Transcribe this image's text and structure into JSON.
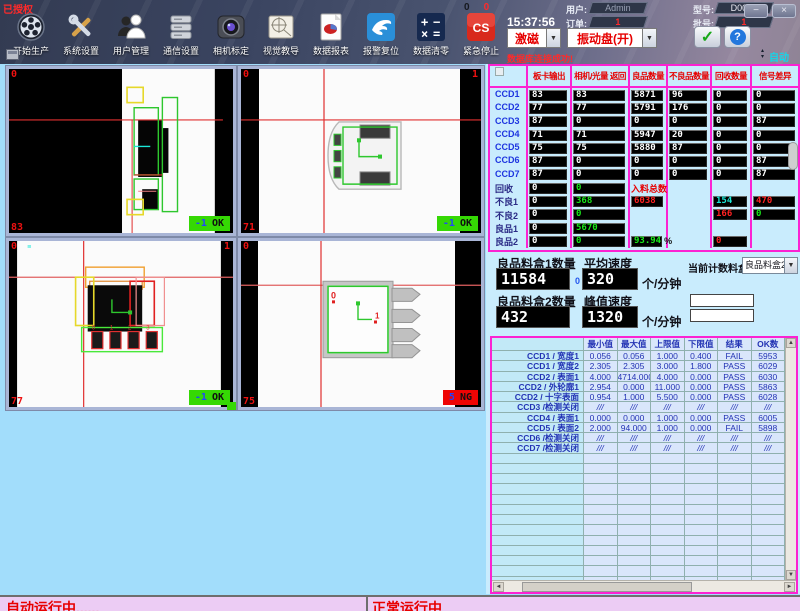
{
  "window": {
    "authorized": "已授权",
    "time": "15:37:56",
    "counter_black": "0",
    "counter_red": "0",
    "db_status": "数据库连接成功!",
    "auto_label": "自动",
    "minimize": "−",
    "close": "×",
    "check_glyph": "✓",
    "help_glyph": "?"
  },
  "header_fields": {
    "user_label": "用户:",
    "user_value": "Admin",
    "order_label": "订单:",
    "order_value": "1",
    "model_label": "型号:",
    "model_value": "D0032",
    "batch_label": "批号:",
    "batch_value": "1"
  },
  "controls": {
    "excite": "激磁",
    "vibrator": "振动盘(开)"
  },
  "toolbar": {
    "items": [
      {
        "id": "production-start",
        "label": "开始生产"
      },
      {
        "id": "system-settings",
        "label": "系统设置"
      },
      {
        "id": "user-management",
        "label": "用户管理"
      },
      {
        "id": "communication-settings",
        "label": "通信设置"
      },
      {
        "id": "camera-calibration",
        "label": "相机标定"
      },
      {
        "id": "vision-teaching",
        "label": "视觉教导"
      },
      {
        "id": "data-report",
        "label": "数据报表"
      },
      {
        "id": "alarm-reset",
        "label": "报警复位"
      },
      {
        "id": "data-clear",
        "label": "数据清零"
      },
      {
        "id": "emergency-stop",
        "label": "紧急停止",
        "icon_text": "CS"
      }
    ]
  },
  "cameras": [
    {
      "tl": "0",
      "tr": "",
      "bl": "83",
      "badge_num": "-1",
      "badge_text": "OK",
      "badge_type": "ok"
    },
    {
      "tl": "0",
      "tr": "1",
      "bl": "71",
      "badge_num": "-1",
      "badge_text": "OK",
      "badge_type": "ok"
    },
    {
      "tl": "0",
      "tr": "1",
      "bl": "77",
      "badge_num": "-1",
      "badge_text": "OK",
      "badge_type": "ok"
    },
    {
      "tl": "0",
      "tr": "",
      "bl": "75",
      "badge_num": "5",
      "badge_text": "NG",
      "badge_type": "ng"
    }
  ],
  "stats_table": {
    "col_headers": [
      "板卡输出",
      "相机/光量 返回",
      "良品数量",
      "不良品数量",
      "回收数量",
      "信号差异"
    ],
    "rows": [
      {
        "label": "CCD1",
        "ccd": true,
        "cells": [
          [
            "83",
            "w"
          ],
          [
            "83",
            "w"
          ],
          [
            "5871",
            "w"
          ],
          [
            "96",
            "w"
          ],
          [
            "0",
            "w"
          ],
          [
            "0",
            "w"
          ]
        ]
      },
      {
        "label": "CCD2",
        "ccd": true,
        "cells": [
          [
            "77",
            "w"
          ],
          [
            "77",
            "w"
          ],
          [
            "5791",
            "w"
          ],
          [
            "176",
            "w"
          ],
          [
            "0",
            "w"
          ],
          [
            "0",
            "w"
          ]
        ]
      },
      {
        "label": "CCD3",
        "ccd": true,
        "cells": [
          [
            "87",
            "w"
          ],
          [
            "0",
            "w"
          ],
          [
            "0",
            "w"
          ],
          [
            "0",
            "w"
          ],
          [
            "0",
            "w"
          ],
          [
            "87",
            "w"
          ]
        ]
      },
      {
        "label": "CCD4",
        "ccd": true,
        "cells": [
          [
            "71",
            "w"
          ],
          [
            "71",
            "w"
          ],
          [
            "5947",
            "w"
          ],
          [
            "20",
            "w"
          ],
          [
            "0",
            "w"
          ],
          [
            "0",
            "w"
          ]
        ]
      },
      {
        "label": "CCD5",
        "ccd": true,
        "cells": [
          [
            "75",
            "w"
          ],
          [
            "75",
            "w"
          ],
          [
            "5880",
            "w"
          ],
          [
            "87",
            "w"
          ],
          [
            "0",
            "w"
          ],
          [
            "0",
            "w"
          ]
        ]
      },
      {
        "label": "CCD6",
        "ccd": true,
        "cells": [
          [
            "87",
            "w"
          ],
          [
            "0",
            "w"
          ],
          [
            "0",
            "w"
          ],
          [
            "0",
            "w"
          ],
          [
            "0",
            "w"
          ],
          [
            "87",
            "w"
          ]
        ]
      },
      {
        "label": "CCD7",
        "ccd": true,
        "cells": [
          [
            "87",
            "w"
          ],
          [
            "0",
            "w"
          ],
          [
            "0",
            "w"
          ],
          [
            "0",
            "w"
          ],
          [
            "0",
            "w"
          ],
          [
            "87",
            "w"
          ]
        ]
      },
      {
        "label": "回收",
        "ccd": false,
        "cells": [
          [
            "0",
            "w"
          ],
          [
            "0",
            "g"
          ],
          {
            "lbl": "入料总数"
          },
          null,
          null,
          null
        ]
      },
      {
        "label": "不良1",
        "ccd": false,
        "cells": [
          [
            "0",
            "w"
          ],
          [
            "368",
            "g"
          ],
          [
            "6038",
            "r"
          ],
          null,
          [
            "154",
            "c"
          ],
          [
            "470",
            "r"
          ]
        ]
      },
      {
        "label": "不良2",
        "ccd": false,
        "cells": [
          [
            "0",
            "w"
          ],
          [
            "0",
            "g"
          ],
          null,
          null,
          [
            "166",
            "r"
          ],
          [
            "0",
            "g"
          ]
        ]
      },
      {
        "label": "良品1",
        "ccd": false,
        "cells": [
          [
            "0",
            "w"
          ],
          [
            "5670",
            "g"
          ],
          null,
          null,
          null,
          null
        ]
      },
      {
        "label": "良品2",
        "ccd": false,
        "cells": [
          [
            "0",
            "w"
          ],
          [
            "0",
            "g"
          ],
          [
            "93.94",
            "g",
            "%"
          ],
          null,
          [
            "0",
            "r"
          ],
          null
        ]
      }
    ]
  },
  "counts": {
    "box1_label": "良品料盒1数量",
    "box1_value": "11584",
    "box1_extra": "0",
    "avg_label": "平均速度",
    "avg_value": "320",
    "unit": "个/分钟",
    "box2_label": "良品料盒2数量",
    "box2_value": "432",
    "peak_label": "峰值速度",
    "peak_value": "1320",
    "current_label": "当前计数料盒",
    "current_value": "良品料盒2"
  },
  "results_table": {
    "headers": [
      "",
      "最小值",
      "最大值",
      "上限值",
      "下限值",
      "结果",
      "OK数"
    ],
    "rows": [
      {
        "label": "CCD1 / 宽度1",
        "values": [
          "0.056",
          "0.056",
          "1.000",
          "0.400",
          "FAIL",
          "5953"
        ]
      },
      {
        "label": "CCD1 / 宽度2",
        "values": [
          "2.305",
          "2.305",
          "3.000",
          "1.800",
          "PASS",
          "6029"
        ]
      },
      {
        "label": "CCD2 / 表面1",
        "values": [
          "4.000",
          "4714.000",
          "4.000",
          "0.000",
          "PASS",
          "6030"
        ]
      },
      {
        "label": "CCD2 / 外轮廓1",
        "values": [
          "2.954",
          "0.000",
          "11.000",
          "0.000",
          "PASS",
          "5863"
        ]
      },
      {
        "label": "CCD2 / 十字表面",
        "values": [
          "0.954",
          "1.000",
          "5.500",
          "0.000",
          "PASS",
          "6028"
        ]
      },
      {
        "label": "CCD3 /检测关闭",
        "values": [
          "///",
          "///",
          "///",
          "///",
          "///",
          "///"
        ]
      },
      {
        "label": "CCD4 / 表面1",
        "values": [
          "0.000",
          "0.000",
          "1.000",
          "0.000",
          "PASS",
          "6005"
        ]
      },
      {
        "label": "CCD5 / 表面2",
        "values": [
          "2.000",
          "94.000",
          "1.000",
          "0.000",
          "FAIL",
          "5898"
        ]
      },
      {
        "label": "CCD6 /检测关闭",
        "values": [
          "///",
          "///",
          "///",
          "///",
          "///",
          "///"
        ]
      },
      {
        "label": "CCD7 /检测关闭",
        "values": [
          "///",
          "///",
          "///",
          "///",
          "///",
          "///"
        ]
      }
    ],
    "empty_rows": 13
  },
  "status_bar": {
    "left": "自动运行中......",
    "right": "正常运行中"
  }
}
